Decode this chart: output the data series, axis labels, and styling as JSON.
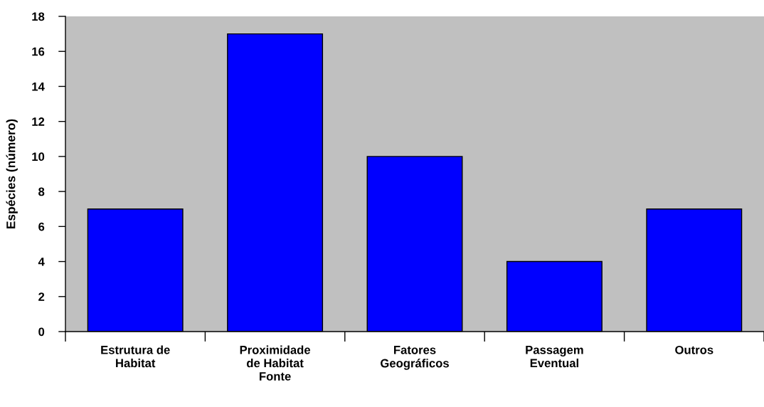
{
  "chart_data": {
    "type": "bar",
    "ylabel": "Espécies (número)",
    "categories": [
      "Estrutura de\nHabitat",
      "Proximidade\nde Habitat\nFonte",
      "Fatores\nGeográficos",
      "Passagem\nEventual",
      "Outros"
    ],
    "values": [
      7,
      17,
      10,
      4,
      7
    ],
    "color": "#0000ff",
    "ylim": [
      0,
      18
    ],
    "yticks": [
      0,
      2,
      4,
      6,
      8,
      10,
      12,
      14,
      16,
      18
    ]
  }
}
